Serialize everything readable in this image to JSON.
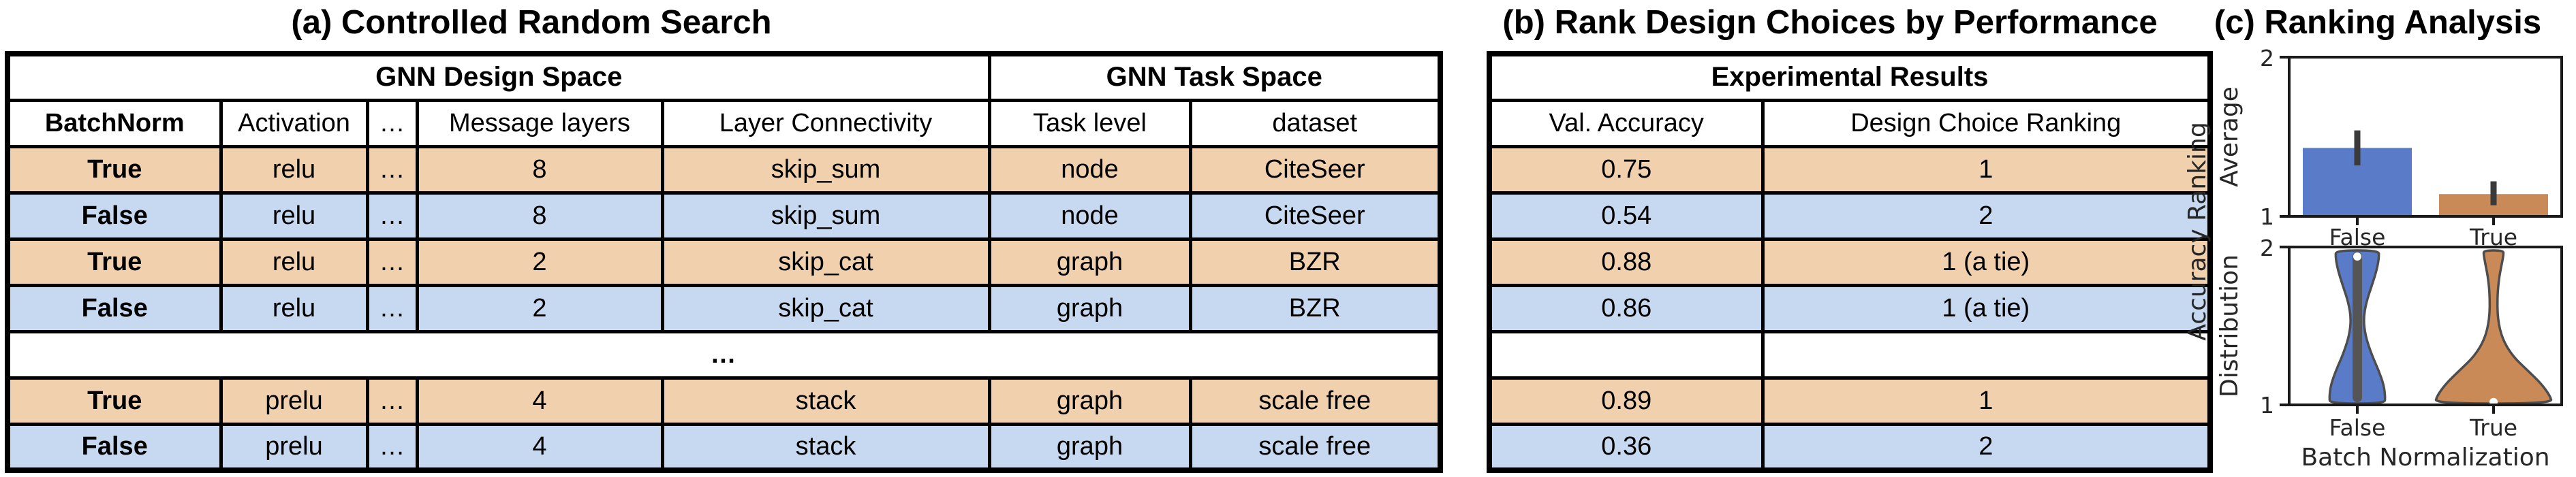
{
  "panel_a": {
    "title": "(a) Controlled Random Search",
    "table": {
      "group_headers": [
        "GNN Design Space",
        "GNN Task Space"
      ],
      "columns": [
        "BatchNorm",
        "Activation",
        "…",
        "Message layers",
        "Layer Connectivity",
        "Task level",
        "dataset"
      ],
      "rows": [
        [
          "True",
          "relu",
          "…",
          "8",
          "skip_sum",
          "node",
          "CiteSeer"
        ],
        [
          "False",
          "relu",
          "…",
          "8",
          "skip_sum",
          "node",
          "CiteSeer"
        ],
        [
          "True",
          "relu",
          "…",
          "2",
          "skip_cat",
          "graph",
          "BZR"
        ],
        [
          "False",
          "relu",
          "…",
          "2",
          "skip_cat",
          "graph",
          "BZR"
        ],
        [
          "True",
          "prelu",
          "…",
          "4",
          "stack",
          "graph",
          "scale free"
        ],
        [
          "False",
          "prelu",
          "…",
          "4",
          "stack",
          "graph",
          "scale free"
        ]
      ],
      "ellipsis": "…"
    }
  },
  "panel_b": {
    "title": "(b) Rank Design Choices by Performance",
    "table": {
      "group_header": "Experimental Results",
      "columns": [
        "Val. Accuracy",
        "Design Choice Ranking"
      ],
      "rows": [
        [
          "0.75",
          "1"
        ],
        [
          "0.54",
          "2"
        ],
        [
          "0.88",
          "1 (a tie)"
        ],
        [
          "0.86",
          "1 (a tie)"
        ],
        [
          "0.89",
          "1"
        ],
        [
          "0.36",
          "2"
        ]
      ]
    }
  },
  "panel_c": {
    "title": "(c) Ranking Analysis"
  },
  "colors": {
    "row_tan": "#f0d0ad",
    "row_blue": "#c7d9f0",
    "bar_blue": "#5a7cc8",
    "bar_orange": "#c98a57",
    "error_bar": "#3a3a3a",
    "violin_stroke": "#4d4d4d",
    "violin_inner_bar": "#555555"
  },
  "chart_data": [
    {
      "type": "bar",
      "categories": [
        "False",
        "True"
      ],
      "values": [
        1.43,
        1.14
      ],
      "errors": [
        [
          1.32,
          1.54
        ],
        [
          1.07,
          1.22
        ]
      ],
      "bar_colors": [
        "#5a7cc8",
        "#c98a57"
      ],
      "ylabel": "Average",
      "ylabel_shared": "Accuracy Ranking",
      "ylim": [
        1,
        2
      ],
      "ytick_labels": [
        "2",
        "1"
      ],
      "grid": false,
      "legend": "none"
    },
    {
      "type": "violin",
      "categories": [
        "False",
        "True"
      ],
      "xlabel": "Batch Normalization",
      "ylabel": "Distribution",
      "ylim": [
        1,
        2
      ],
      "ytick_labels": [
        "2",
        "1"
      ],
      "grid": false,
      "violins": [
        {
          "name": "False",
          "color": "#5a7cc8",
          "inner": "bar",
          "median_t": 0.96,
          "profile": [
            [
              0,
              40
            ],
            [
              0.04,
              41
            ],
            [
              0.12,
              39
            ],
            [
              0.22,
              31
            ],
            [
              0.32,
              21
            ],
            [
              0.44,
              12
            ],
            [
              0.55,
              9
            ],
            [
              0.66,
              13
            ],
            [
              0.78,
              22
            ],
            [
              0.88,
              29
            ],
            [
              0.96,
              32
            ],
            [
              1,
              31
            ]
          ]
        },
        {
          "name": "True",
          "color": "#c98a57",
          "inner": "dot",
          "median_t": 0.01,
          "profile": [
            [
              0,
              86
            ],
            [
              0.05,
              83
            ],
            [
              0.13,
              70
            ],
            [
              0.22,
              49
            ],
            [
              0.31,
              28
            ],
            [
              0.42,
              13
            ],
            [
              0.55,
              6
            ],
            [
              0.7,
              5.5
            ],
            [
              0.82,
              8
            ],
            [
              0.91,
              12
            ],
            [
              0.97,
              14.5
            ],
            [
              1,
              14.5
            ]
          ]
        }
      ]
    }
  ]
}
